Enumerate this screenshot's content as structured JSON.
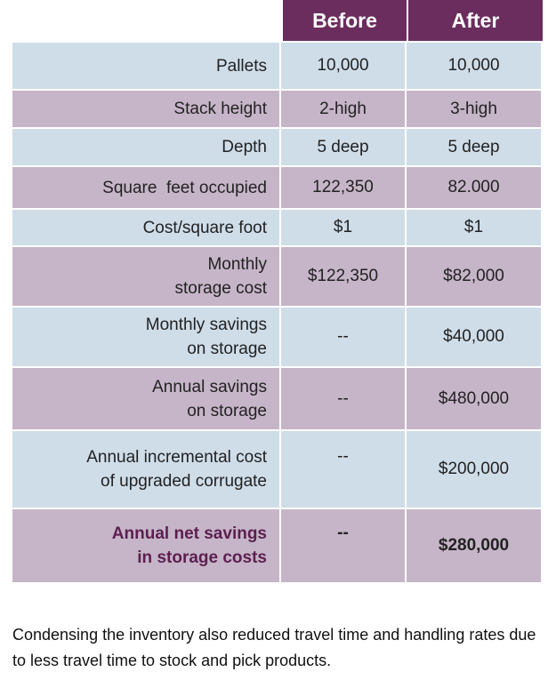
{
  "header": {
    "before": "Before",
    "after": "After"
  },
  "rows": [
    {
      "label": "Pallets",
      "before": "10,000",
      "after": "10,000"
    },
    {
      "label": "Stack height",
      "before": "2-high",
      "after": "3-high"
    },
    {
      "label": "Depth",
      "before": "5 deep",
      "after": "5 deep"
    },
    {
      "label": "Square  feet occupied",
      "before": "122,350",
      "after": "82.000"
    },
    {
      "label": "Cost/square foot",
      "before": "$1",
      "after": "$1"
    },
    {
      "label_line1": "Monthly",
      "label_line2": "storage cost",
      "before": "$122,350",
      "after": "$82,000"
    },
    {
      "label_line1": "Monthly savings",
      "label_line2": "on storage",
      "before": "--",
      "after": "$40,000"
    },
    {
      "label_line1": "Annual savings",
      "label_line2": "on storage",
      "before": "--",
      "after": "$480,000"
    },
    {
      "label_line1": "Annual incremental cost",
      "label_line2": "of upgraded corrugate",
      "before": "--",
      "after": "$200,000"
    },
    {
      "label_line1": "Annual net savings",
      "label_line2": "in storage costs",
      "before": "--",
      "after": "$280,000"
    }
  ],
  "caption": "Condensing the inventory also reduced travel time and handling rates due to less travel time to stock and pick products."
}
